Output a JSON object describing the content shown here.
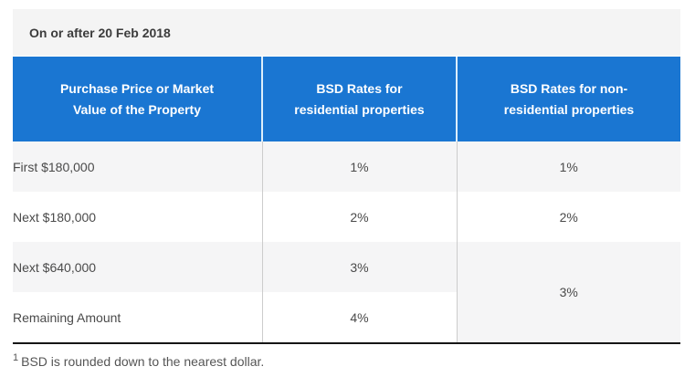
{
  "table": {
    "title": "On or after 20 Feb 2018",
    "columns": [
      {
        "label": "Purchase Price or Market\nValue of the Property"
      },
      {
        "label": "BSD Rates for\nresidential properties"
      },
      {
        "label": "BSD Rates for non-\nresidential properties"
      }
    ],
    "rows": [
      {
        "tier": "First $180,000",
        "residential_rate": "1%",
        "non_residential_rate": "1%"
      },
      {
        "tier": "Next $180,000",
        "residential_rate": "2%",
        "non_residential_rate": "2%"
      },
      {
        "tier": "Next $640,000",
        "residential_rate": "3%",
        "non_residential_rate": "3%",
        "non_residential_rowspan": 2
      },
      {
        "tier": "Remaining Amount",
        "residential_rate": "4%"
      }
    ]
  },
  "footnote": {
    "marker": "1",
    "text": "BSD is rounded down to the nearest dollar."
  },
  "colors": {
    "header_blue": "#1a76d2",
    "header_text": "#ffffff",
    "header_divider": "#ddeefb",
    "title_band_gray": "#f4f4f4",
    "title_text": "#3c3c3c",
    "stripe_gray": "#f5f5f6",
    "divider_gray": "#cccccc",
    "bottom_border": "#161616",
    "body_text": "#4a4a4a",
    "footnote_text": "#555555"
  }
}
